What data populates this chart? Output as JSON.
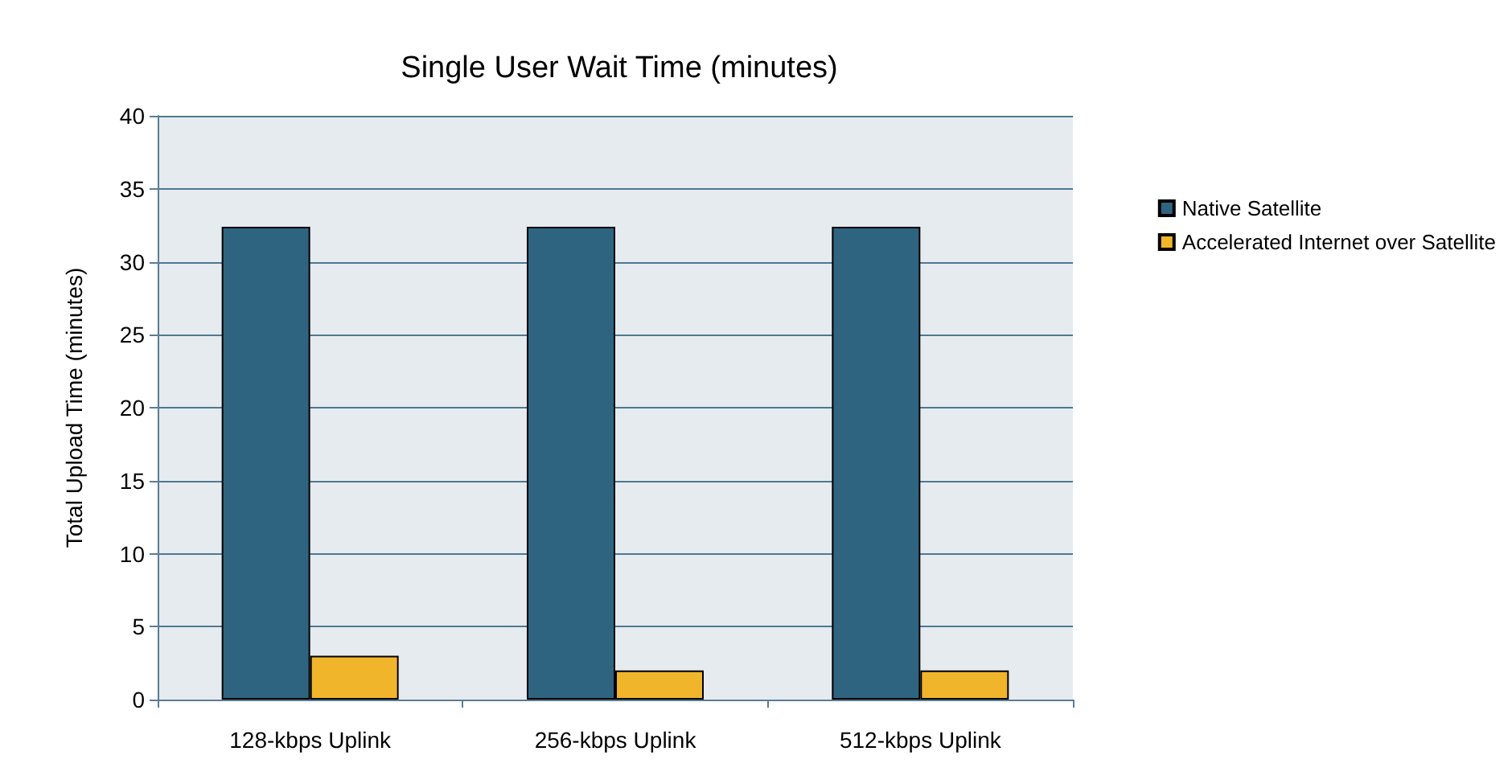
{
  "chart_data": {
    "type": "bar",
    "title": "Single User Wait Time (minutes)",
    "ylabel": "Total Upload Time (minutes)",
    "categories": [
      "128-kbps Uplink",
      "256-kbps Uplink",
      "512-kbps Uplink"
    ],
    "series": [
      {
        "name": "Native Satellite",
        "color": "#2f6480",
        "values": [
          32.4,
          32.4,
          32.4
        ]
      },
      {
        "name": "Accelerated Internet over Satellite",
        "color": "#f0b52a",
        "values": [
          3,
          2,
          2
        ]
      }
    ],
    "ylim": [
      0,
      40
    ],
    "yticks": [
      0,
      5,
      10,
      15,
      20,
      25,
      30,
      35,
      40
    ],
    "grid": "y",
    "legend": "right"
  }
}
